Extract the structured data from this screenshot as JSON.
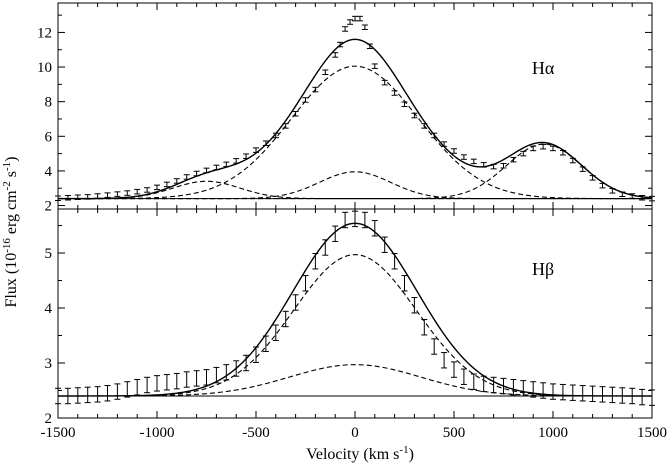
{
  "chart_data": {
    "type": "line",
    "xlabel": "Velocity (km s",
    "xlabel_sup": "-1",
    "xlabel_close": ")",
    "ylabel_parts": [
      "Flux (10",
      "-16",
      " erg cm",
      "-2",
      " s",
      "-1",
      ")"
    ],
    "xlim": [
      -1500,
      1500
    ],
    "xticks": [
      -1500,
      -1000,
      -500,
      0,
      500,
      1000,
      1500
    ],
    "x_minor_step": 100,
    "panels": [
      {
        "label": "Hα",
        "ylim": [
          1.8,
          13.7
        ],
        "yticks": [
          2,
          4,
          6,
          8,
          10,
          12
        ],
        "y_minor_step": 1,
        "continuum": 2.4,
        "model_components": [
          {
            "name": "",
            "style": "dashed",
            "amp": 7.65,
            "center": 0,
            "sigma": 320
          },
          {
            "name": "",
            "style": "dashed",
            "amp": 1.55,
            "center": 0,
            "sigma": 180
          },
          {
            "name": "",
            "style": "dashed",
            "amp": 1.0,
            "center": -750,
            "sigma": 170
          },
          {
            "name": "",
            "style": "dashed",
            "amp": 3.15,
            "center": 955,
            "sigma": 190
          }
        ],
        "observed": {
          "x": [
            -1500,
            -1450,
            -1400,
            -1350,
            -1300,
            -1250,
            -1200,
            -1150,
            -1100,
            -1050,
            -1000,
            -950,
            -900,
            -850,
            -800,
            -750,
            -700,
            -650,
            -600,
            -550,
            -500,
            -450,
            -400,
            -350,
            -300,
            -250,
            -200,
            -150,
            -100,
            -75,
            -50,
            -25,
            0,
            25,
            50,
            75,
            100,
            150,
            200,
            250,
            300,
            350,
            400,
            450,
            500,
            550,
            600,
            650,
            700,
            750,
            800,
            850,
            900,
            950,
            1000,
            1050,
            1100,
            1150,
            1200,
            1250,
            1300,
            1350,
            1400,
            1450,
            1500
          ],
          "y": [
            2.42,
            2.45,
            2.48,
            2.5,
            2.55,
            2.6,
            2.66,
            2.72,
            2.8,
            2.9,
            3.05,
            3.22,
            3.42,
            3.65,
            3.85,
            4.03,
            4.2,
            4.38,
            4.58,
            4.85,
            5.2,
            5.6,
            6.05,
            6.6,
            7.3,
            8.1,
            8.7,
            9.7,
            10.7,
            11.3,
            12.2,
            12.6,
            12.8,
            12.8,
            12.3,
            11.2,
            10.05,
            9.1,
            8.5,
            7.85,
            7.2,
            6.6,
            6.05,
            5.55,
            5.15,
            4.8,
            4.55,
            4.35,
            4.25,
            4.3,
            4.65,
            5.0,
            5.3,
            5.4,
            5.3,
            5.05,
            4.6,
            4.1,
            3.6,
            3.15,
            2.85,
            2.65,
            2.55,
            2.45,
            2.4
          ],
          "err": 0.13
        }
      },
      {
        "label": "Hβ",
        "ylim": [
          2.0,
          5.8
        ],
        "yticks": [
          2,
          3,
          4,
          5
        ],
        "y_minor_step": 0.5,
        "continuum": 2.4,
        "model_components": [
          {
            "name": "",
            "style": "dashed",
            "amp": 2.57,
            "center": 0,
            "sigma": 310
          },
          {
            "name": "",
            "style": "dashed",
            "amp": 0.57,
            "center": 0,
            "sigma": 330
          }
        ],
        "observed": {
          "x": [
            -1500,
            -1450,
            -1400,
            -1350,
            -1300,
            -1250,
            -1200,
            -1150,
            -1100,
            -1050,
            -1000,
            -950,
            -900,
            -850,
            -800,
            -750,
            -700,
            -650,
            -600,
            -550,
            -500,
            -450,
            -400,
            -350,
            -300,
            -250,
            -200,
            -150,
            -100,
            -50,
            0,
            50,
            100,
            150,
            200,
            250,
            300,
            350,
            400,
            450,
            500,
            550,
            600,
            650,
            700,
            750,
            800,
            850,
            900,
            950,
            1000,
            1050,
            1100,
            1150,
            1200,
            1250,
            1300,
            1350,
            1400,
            1450,
            1500
          ],
          "y": [
            2.4,
            2.4,
            2.41,
            2.42,
            2.43,
            2.45,
            2.48,
            2.52,
            2.56,
            2.6,
            2.63,
            2.65,
            2.67,
            2.7,
            2.72,
            2.74,
            2.78,
            2.83,
            2.9,
            3.0,
            3.15,
            3.35,
            3.55,
            3.8,
            4.1,
            4.45,
            4.85,
            5.1,
            5.35,
            5.6,
            5.62,
            5.6,
            5.45,
            5.15,
            4.85,
            4.45,
            4.05,
            3.65,
            3.3,
            3.05,
            2.88,
            2.75,
            2.66,
            2.62,
            2.6,
            2.58,
            2.56,
            2.54,
            2.52,
            2.5,
            2.48,
            2.47,
            2.46,
            2.45,
            2.44,
            2.43,
            2.42,
            2.41,
            2.4,
            2.38,
            2.37
          ],
          "err": 0.14
        }
      }
    ]
  }
}
